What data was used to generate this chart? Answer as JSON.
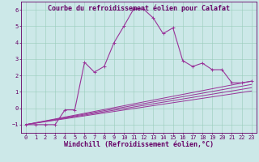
{
  "title": "Courbe du refroidissement éolien pour Calafat",
  "xlabel": "Windchill (Refroidissement éolien,°C)",
  "bg_color": "#cce8e8",
  "line_color": "#993399",
  "xlim": [
    -0.5,
    23.5
  ],
  "ylim": [
    -1.5,
    6.5
  ],
  "xticks": [
    0,
    1,
    2,
    3,
    4,
    5,
    6,
    7,
    8,
    9,
    10,
    11,
    12,
    13,
    14,
    15,
    16,
    17,
    18,
    19,
    20,
    21,
    22,
    23
  ],
  "yticks": [
    -1,
    0,
    1,
    2,
    3,
    4,
    5,
    6
  ],
  "main_x": [
    0,
    1,
    2,
    3,
    4,
    5,
    6,
    7,
    8,
    9,
    10,
    11,
    12,
    13,
    14,
    15,
    16,
    17,
    18,
    19,
    20,
    21,
    22,
    23
  ],
  "main_y": [
    -1,
    -1,
    -1,
    -1,
    -0.1,
    -0.1,
    2.8,
    2.2,
    2.55,
    4.0,
    5.0,
    6.05,
    6.05,
    5.5,
    4.55,
    4.9,
    2.9,
    2.55,
    2.75,
    2.35,
    2.35,
    1.55,
    1.55,
    1.65
  ],
  "line1_y_end": 1.65,
  "line2_y_end": 1.45,
  "line3_y_end": 1.25,
  "line4_y_end": 1.05,
  "grid_color": "#99ccbb",
  "title_fontsize": 6,
  "xlabel_fontsize": 6,
  "tick_fontsize": 5
}
